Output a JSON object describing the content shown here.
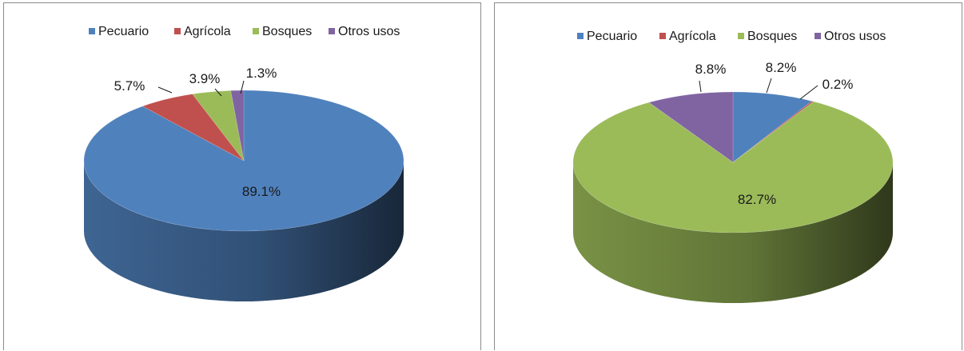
{
  "chart_data": [
    {
      "type": "pie",
      "three_d": true,
      "legend_position": "top",
      "categories": [
        "Pecuario",
        "Agrícola",
        "Bosques",
        "Otros usos"
      ],
      "values": [
        89.1,
        5.7,
        3.9,
        1.3
      ],
      "labels": [
        "89.1%",
        "5.7%",
        "3.9%",
        "1.3%"
      ],
      "colors": [
        "#4f81bd",
        "#c0504d",
        "#9bbb59",
        "#8064a2"
      ]
    },
    {
      "type": "pie",
      "three_d": true,
      "legend_position": "top",
      "categories": [
        "Pecuario",
        "Agrícola",
        "Bosques",
        "Otros usos"
      ],
      "values": [
        8.2,
        0.2,
        82.7,
        8.8
      ],
      "labels": [
        "8.2%",
        "0.2%",
        "82.7%",
        "8.8%"
      ],
      "colors": [
        "#4f81bd",
        "#c0504d",
        "#9bbb59",
        "#8064a2"
      ]
    }
  ]
}
